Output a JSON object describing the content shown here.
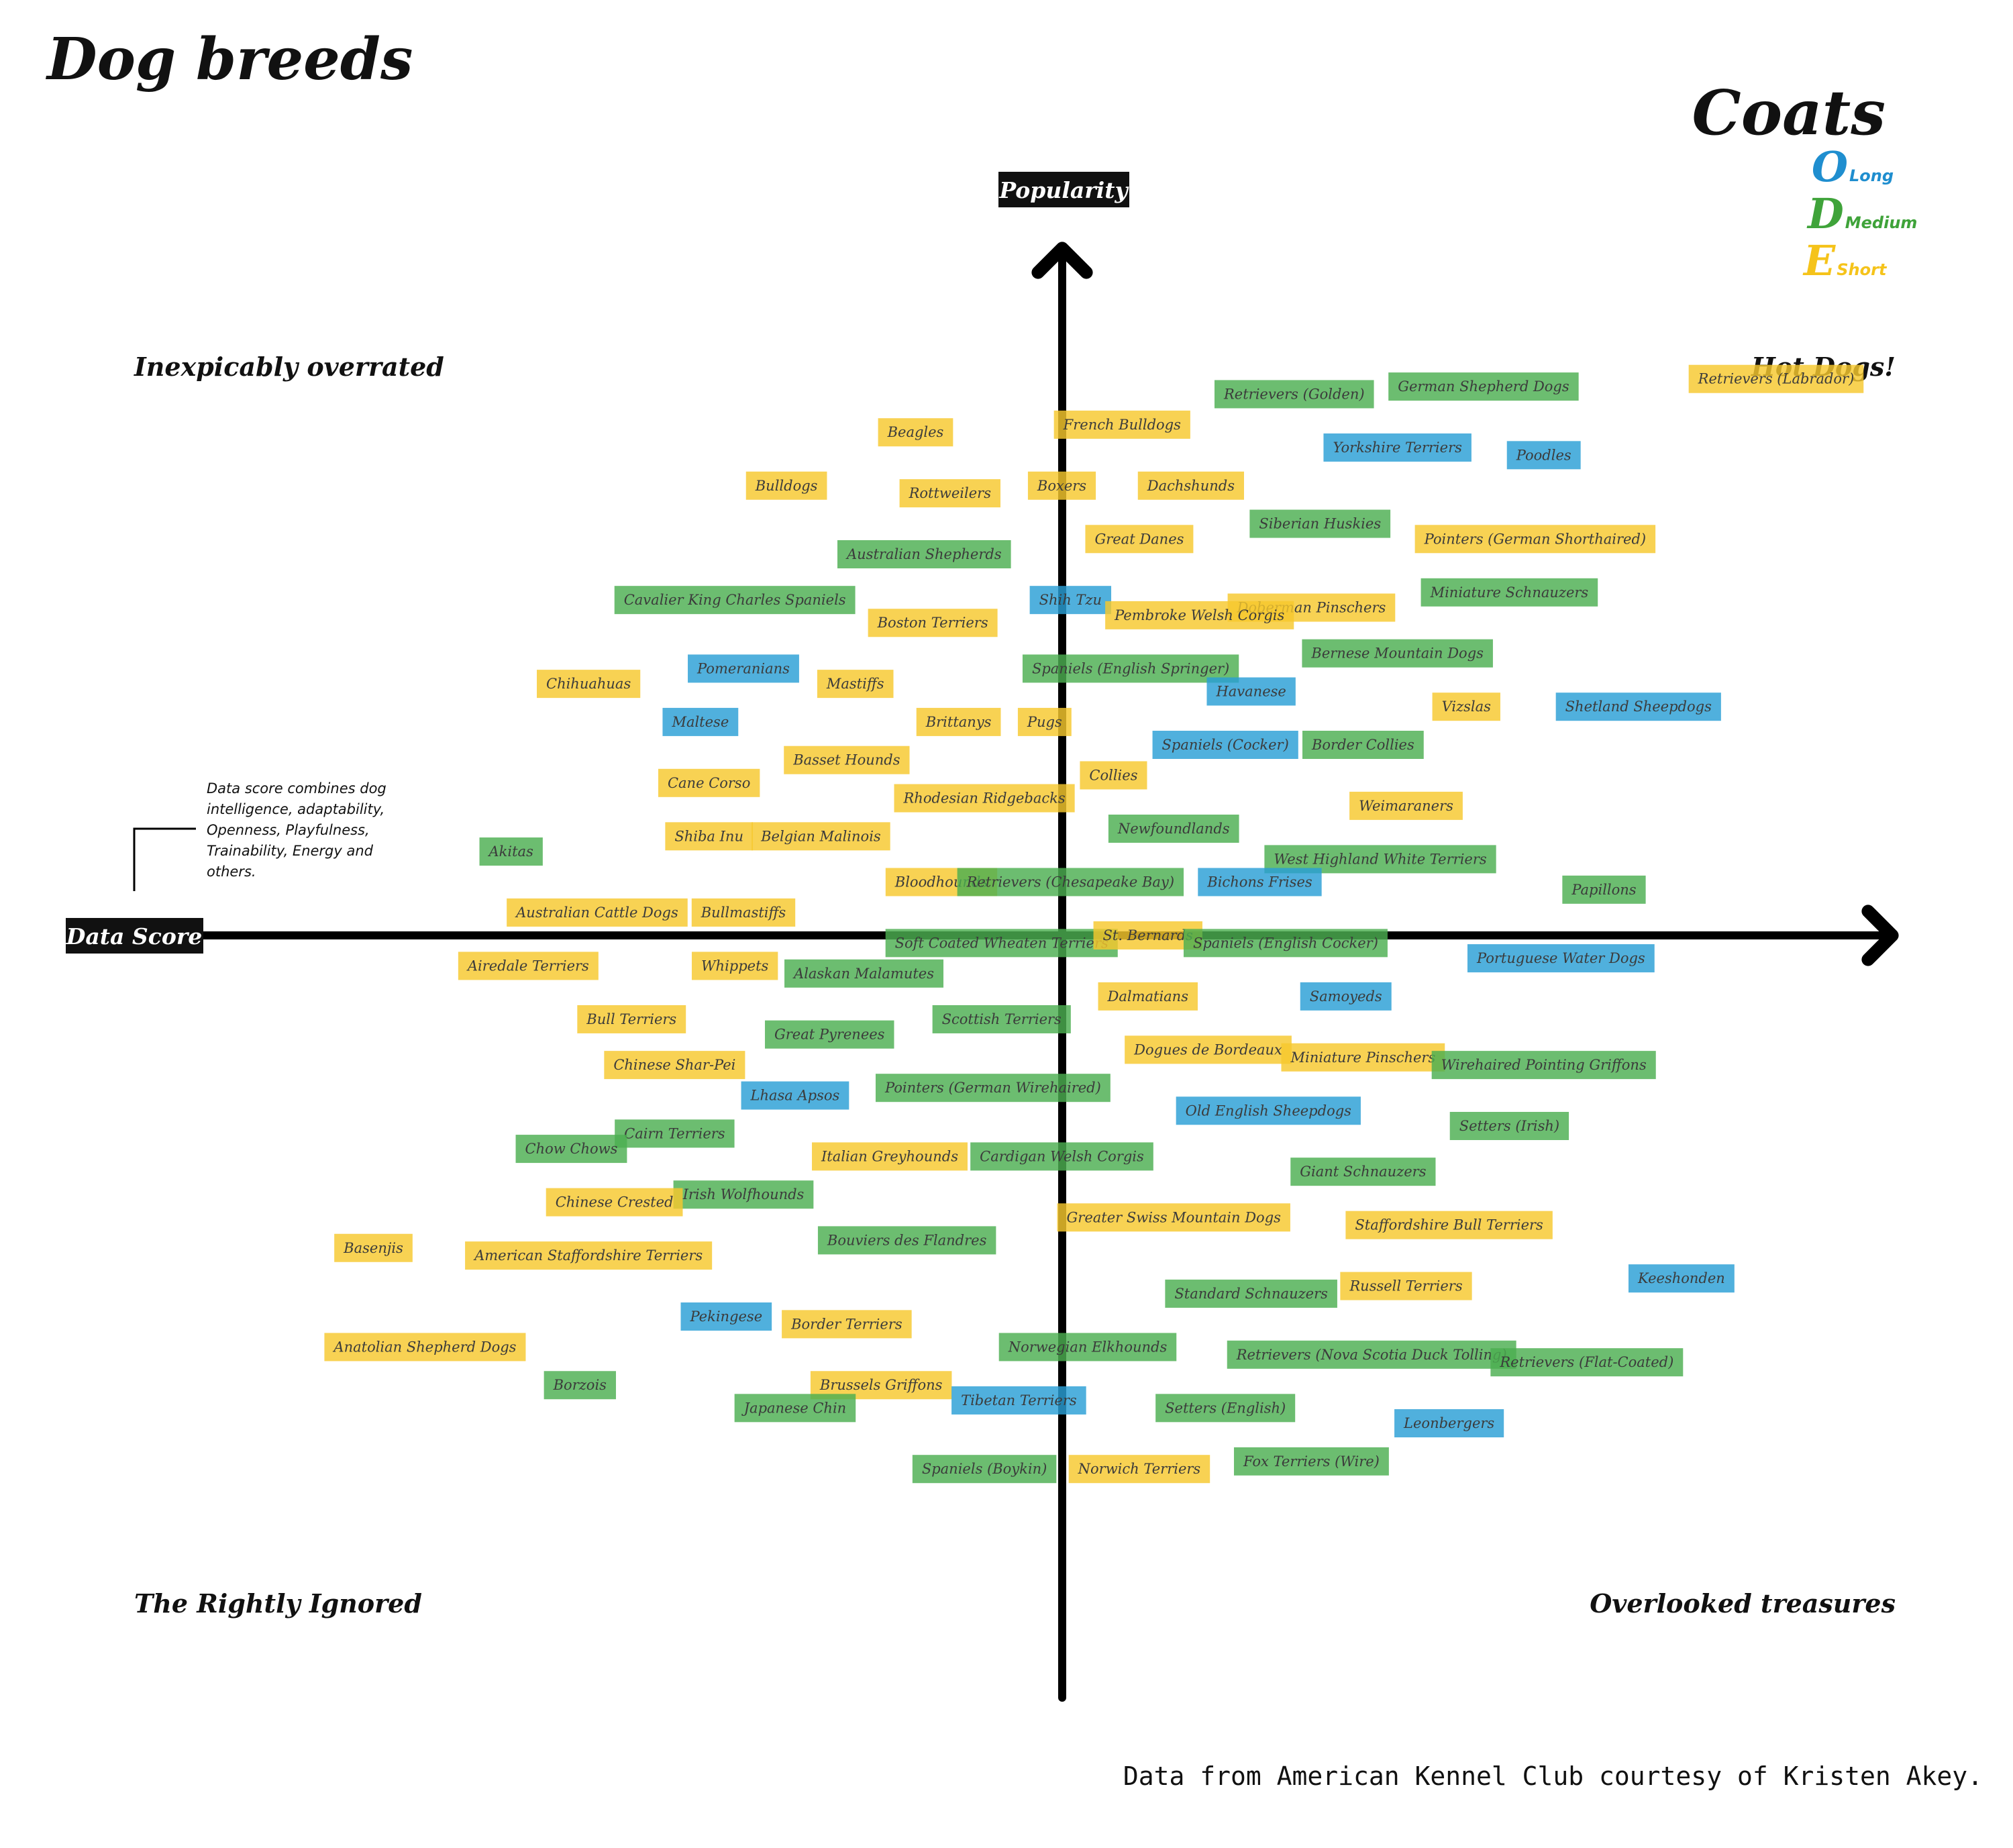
{
  "title": "Dog breeds",
  "legend": {
    "title": "Coats",
    "items": [
      {
        "glyph": "O",
        "label": "Long",
        "color": "#1f8ecf"
      },
      {
        "glyph": "D",
        "label": "Medium",
        "color": "#3fa33a"
      },
      {
        "glyph": "E",
        "label": "Short",
        "color": "#f5c31a"
      }
    ]
  },
  "quadrants": {
    "top_left": "Inexpicably overrated",
    "top_right": "Hot Dogs!",
    "bottom_left": "The Rightly Ignored",
    "bottom_right": "Overlooked treasures"
  },
  "axes": {
    "y_label": "Popularity",
    "x_label": "Data Score"
  },
  "note": [
    "Data score combines dog",
    "intelligence, adaptability,",
    "Openness, Playfulness,",
    "Trainability, Energy and",
    "others."
  ],
  "source": "Data from American Kennel Club courtesy of Kristen Akey.",
  "coat_colors": {
    "Long": "#2a9fd6",
    "Medium": "#4caf50",
    "Short": "#f7c82d"
  },
  "chart_data": {
    "type": "scatter",
    "x_axis": "Data Score",
    "y_axis": "Popularity",
    "xlim": [
      -1,
      1
    ],
    "ylim": [
      -1,
      1
    ],
    "points": [
      {
        "name": "Retrievers (Labrador)",
        "coat": "Short",
        "x": 0.83,
        "y": 0.73
      },
      {
        "name": "German Shepherd Dogs",
        "coat": "Medium",
        "x": 0.49,
        "y": 0.72
      },
      {
        "name": "Retrievers (Golden)",
        "coat": "Medium",
        "x": 0.27,
        "y": 0.71
      },
      {
        "name": "French Bulldogs",
        "coat": "Short",
        "x": 0.07,
        "y": 0.67
      },
      {
        "name": "Bulldogs",
        "coat": "Short",
        "x": -0.32,
        "y": 0.59
      },
      {
        "name": "Beagles",
        "coat": "Short",
        "x": -0.17,
        "y": 0.66
      },
      {
        "name": "Poodles",
        "coat": "Long",
        "x": 0.56,
        "y": 0.63
      },
      {
        "name": "Rottweilers",
        "coat": "Short",
        "x": -0.13,
        "y": 0.58
      },
      {
        "name": "Yorkshire Terriers",
        "coat": "Long",
        "x": 0.39,
        "y": 0.64
      },
      {
        "name": "Pointers (German Shorthaired)",
        "coat": "Short",
        "x": 0.55,
        "y": 0.52
      },
      {
        "name": "Boxers",
        "coat": "Short",
        "x": 0.0,
        "y": 0.59
      },
      {
        "name": "Dachshunds",
        "coat": "Short",
        "x": 0.15,
        "y": 0.59
      },
      {
        "name": "Siberian Huskies",
        "coat": "Medium",
        "x": 0.3,
        "y": 0.54
      },
      {
        "name": "Great Danes",
        "coat": "Short",
        "x": 0.09,
        "y": 0.52
      },
      {
        "name": "Australian Shepherds",
        "coat": "Medium",
        "x": -0.16,
        "y": 0.5
      },
      {
        "name": "Miniature Schnauzers",
        "coat": "Medium",
        "x": 0.52,
        "y": 0.45
      },
      {
        "name": "Cavalier King Charles Spaniels",
        "coat": "Medium",
        "x": -0.38,
        "y": 0.44
      },
      {
        "name": "Shih Tzu",
        "coat": "Long",
        "x": 0.01,
        "y": 0.44
      },
      {
        "name": "Doberman Pinschers",
        "coat": "Short",
        "x": 0.29,
        "y": 0.43
      },
      {
        "name": "Pembroke Welsh Corgis",
        "coat": "Short",
        "x": 0.16,
        "y": 0.42
      },
      {
        "name": "Boston Terriers",
        "coat": "Short",
        "x": -0.15,
        "y": 0.41
      },
      {
        "name": "Bernese Mountain Dogs",
        "coat": "Medium",
        "x": 0.39,
        "y": 0.37
      },
      {
        "name": "Spaniels (English Springer)",
        "coat": "Medium",
        "x": 0.08,
        "y": 0.35
      },
      {
        "name": "Pomeranians",
        "coat": "Long",
        "x": -0.37,
        "y": 0.35
      },
      {
        "name": "Havanese",
        "coat": "Long",
        "x": 0.22,
        "y": 0.32
      },
      {
        "name": "Shetland Sheepdogs",
        "coat": "Long",
        "x": 0.67,
        "y": 0.3
      },
      {
        "name": "Chihuahuas",
        "coat": "Short",
        "x": -0.55,
        "y": 0.33
      },
      {
        "name": "Mastiffs",
        "coat": "Short",
        "x": -0.24,
        "y": 0.33
      },
      {
        "name": "Vizslas",
        "coat": "Short",
        "x": 0.47,
        "y": 0.3
      },
      {
        "name": "Brittanys",
        "coat": "Short",
        "x": -0.12,
        "y": 0.28
      },
      {
        "name": "Pugs",
        "coat": "Short",
        "x": -0.02,
        "y": 0.28
      },
      {
        "name": "Maltese",
        "coat": "Long",
        "x": -0.42,
        "y": 0.28
      },
      {
        "name": "Spaniels (Cocker)",
        "coat": "Long",
        "x": 0.19,
        "y": 0.25
      },
      {
        "name": "Border Collies",
        "coat": "Medium",
        "x": 0.35,
        "y": 0.25
      },
      {
        "name": "Basset Hounds",
        "coat": "Short",
        "x": -0.25,
        "y": 0.23
      },
      {
        "name": "Cane Corso",
        "coat": "Short",
        "x": -0.41,
        "y": 0.2
      },
      {
        "name": "Collies",
        "coat": "Short",
        "x": 0.06,
        "y": 0.21
      },
      {
        "name": "Rhodesian Ridgebacks",
        "coat": "Short",
        "x": -0.09,
        "y": 0.18
      },
      {
        "name": "Weimaraners",
        "coat": "Short",
        "x": 0.4,
        "y": 0.17
      },
      {
        "name": "Newfoundlands",
        "coat": "Medium",
        "x": 0.13,
        "y": 0.14
      },
      {
        "name": "Shiba Inu",
        "coat": "Short",
        "x": -0.41,
        "y": 0.13
      },
      {
        "name": "Belgian Malinois",
        "coat": "Short",
        "x": -0.28,
        "y": 0.13
      },
      {
        "name": "Akitas",
        "coat": "Medium",
        "x": -0.64,
        "y": 0.11
      },
      {
        "name": "West Highland White Terriers",
        "coat": "Medium",
        "x": 0.37,
        "y": 0.1
      },
      {
        "name": "Bloodhounds",
        "coat": "Short",
        "x": -0.14,
        "y": 0.07
      },
      {
        "name": "Retrievers (Chesapeake Bay)",
        "coat": "Medium",
        "x": 0.01,
        "y": 0.07
      },
      {
        "name": "Bichons Frises",
        "coat": "Long",
        "x": 0.23,
        "y": 0.07
      },
      {
        "name": "Papillons",
        "coat": "Medium",
        "x": 0.63,
        "y": 0.06
      },
      {
        "name": "Australian Cattle Dogs",
        "coat": "Short",
        "x": -0.54,
        "y": 0.03
      },
      {
        "name": "Bullmastiffs",
        "coat": "Short",
        "x": -0.37,
        "y": 0.03
      },
      {
        "name": "Soft Coated Wheaten Terriers",
        "coat": "Medium",
        "x": -0.07,
        "y": -0.01
      },
      {
        "name": "St. Bernards",
        "coat": "Short",
        "x": 0.1,
        "y": -0.0
      },
      {
        "name": "Spaniels (English Cocker)",
        "coat": "Medium",
        "x": 0.26,
        "y": -0.01
      },
      {
        "name": "Portuguese Water Dogs",
        "coat": "Long",
        "x": 0.58,
        "y": -0.03
      },
      {
        "name": "Airedale Terriers",
        "coat": "Short",
        "x": -0.62,
        "y": -0.04
      },
      {
        "name": "Whippets",
        "coat": "Short",
        "x": -0.38,
        "y": -0.04
      },
      {
        "name": "Alaskan Malamutes",
        "coat": "Medium",
        "x": -0.23,
        "y": -0.05
      },
      {
        "name": "Dalmatians",
        "coat": "Short",
        "x": 0.1,
        "y": -0.08
      },
      {
        "name": "Samoyeds",
        "coat": "Long",
        "x": 0.33,
        "y": -0.08
      },
      {
        "name": "Bull Terriers",
        "coat": "Short",
        "x": -0.5,
        "y": -0.11
      },
      {
        "name": "Scottish Terriers",
        "coat": "Medium",
        "x": -0.07,
        "y": -0.11
      },
      {
        "name": "Great Pyrenees",
        "coat": "Medium",
        "x": -0.27,
        "y": -0.13
      },
      {
        "name": "Dogues de Bordeaux",
        "coat": "Short",
        "x": 0.17,
        "y": -0.15
      },
      {
        "name": "Miniature Pinschers",
        "coat": "Short",
        "x": 0.35,
        "y": -0.16
      },
      {
        "name": "Wirehaired Pointing Griffons",
        "coat": "Medium",
        "x": 0.56,
        "y": -0.17
      },
      {
        "name": "Chinese Shar-Pei",
        "coat": "Short",
        "x": -0.45,
        "y": -0.17
      },
      {
        "name": "Pointers (German Wirehaired)",
        "coat": "Medium",
        "x": -0.08,
        "y": -0.2
      },
      {
        "name": "Lhasa Apsos",
        "coat": "Long",
        "x": -0.31,
        "y": -0.21
      },
      {
        "name": "Old English Sheepdogs",
        "coat": "Long",
        "x": 0.24,
        "y": -0.23
      },
      {
        "name": "Setters (Irish)",
        "coat": "Medium",
        "x": 0.52,
        "y": -0.25
      },
      {
        "name": "Cairn Terriers",
        "coat": "Medium",
        "x": -0.45,
        "y": -0.26
      },
      {
        "name": "Chow Chows",
        "coat": "Medium",
        "x": -0.57,
        "y": -0.28
      },
      {
        "name": "Italian Greyhounds",
        "coat": "Short",
        "x": -0.2,
        "y": -0.29
      },
      {
        "name": "Cardigan Welsh Corgis",
        "coat": "Medium",
        "x": -0.0,
        "y": -0.29
      },
      {
        "name": "Giant Schnauzers",
        "coat": "Medium",
        "x": 0.35,
        "y": -0.31
      },
      {
        "name": "Irish Wolfhounds",
        "coat": "Medium",
        "x": -0.37,
        "y": -0.34
      },
      {
        "name": "Chinese Crested",
        "coat": "Short",
        "x": -0.52,
        "y": -0.35
      },
      {
        "name": "Greater Swiss Mountain Dogs",
        "coat": "Short",
        "x": 0.13,
        "y": -0.37
      },
      {
        "name": "Staffordshire Bull Terriers",
        "coat": "Short",
        "x": 0.45,
        "y": -0.38
      },
      {
        "name": "Bouviers des Flandres",
        "coat": "Medium",
        "x": -0.18,
        "y": -0.4
      },
      {
        "name": "Basenjis",
        "coat": "Short",
        "x": -0.8,
        "y": -0.41
      },
      {
        "name": "American Staffordshire Terriers",
        "coat": "Short",
        "x": -0.55,
        "y": -0.42
      },
      {
        "name": "Russell Terriers",
        "coat": "Short",
        "x": 0.4,
        "y": -0.46
      },
      {
        "name": "Keeshonden",
        "coat": "Long",
        "x": 0.72,
        "y": -0.45
      },
      {
        "name": "Standard Schnauzers",
        "coat": "Medium",
        "x": 0.22,
        "y": -0.47
      },
      {
        "name": "Pekingese",
        "coat": "Long",
        "x": -0.39,
        "y": -0.5
      },
      {
        "name": "Border Terriers",
        "coat": "Short",
        "x": -0.25,
        "y": -0.51
      },
      {
        "name": "Anatolian Shepherd Dogs",
        "coat": "Short",
        "x": -0.74,
        "y": -0.54
      },
      {
        "name": "Norwegian Elkhounds",
        "coat": "Medium",
        "x": 0.03,
        "y": -0.54
      },
      {
        "name": "Retrievers (Nova Scotia Duck Tolling)",
        "coat": "Medium",
        "x": 0.36,
        "y": -0.55
      },
      {
        "name": "Retrievers (Flat-Coated)",
        "coat": "Medium",
        "x": 0.61,
        "y": -0.56
      },
      {
        "name": "Brussels Griffons",
        "coat": "Short",
        "x": -0.21,
        "y": -0.59
      },
      {
        "name": "Borzois",
        "coat": "Medium",
        "x": -0.56,
        "y": -0.59
      },
      {
        "name": "Tibetan Terriers",
        "coat": "Long",
        "x": -0.05,
        "y": -0.61
      },
      {
        "name": "Japanese Chin",
        "coat": "Medium",
        "x": -0.31,
        "y": -0.62
      },
      {
        "name": "Setters (English)",
        "coat": "Medium",
        "x": 0.19,
        "y": -0.62
      },
      {
        "name": "Leonbergers",
        "coat": "Long",
        "x": 0.45,
        "y": -0.64
      },
      {
        "name": "Fox Terriers (Wire)",
        "coat": "Medium",
        "x": 0.29,
        "y": -0.69
      },
      {
        "name": "Spaniels (Boykin)",
        "coat": "Medium",
        "x": -0.09,
        "y": -0.7
      },
      {
        "name": "Norwich Terriers",
        "coat": "Short",
        "x": 0.09,
        "y": -0.7
      }
    ]
  }
}
